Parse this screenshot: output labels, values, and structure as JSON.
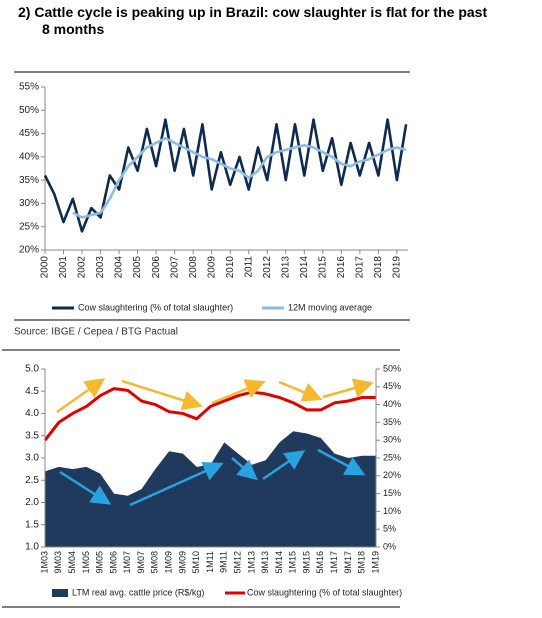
{
  "title": "2)  Cattle cycle is peaking up in Brazil: cow slaughter is flat for the past 8 months",
  "source": "Source: IBGE / Cepea / BTG Pactual",
  "chart_data": [
    {
      "type": "line",
      "x": [
        2000,
        2000.5,
        2001,
        2001.5,
        2002,
        2002.5,
        2003,
        2003.5,
        2004,
        2004.5,
        2005,
        2005.5,
        2006,
        2006.5,
        2007,
        2007.5,
        2008,
        2008.5,
        2009,
        2009.5,
        2010,
        2010.5,
        2011,
        2011.5,
        2012,
        2012.5,
        2013,
        2013.5,
        2014,
        2014.5,
        2015,
        2015.5,
        2016,
        2016.5,
        2017,
        2017.5,
        2018,
        2018.5,
        2019,
        2019.5
      ],
      "series": [
        {
          "name": "Cow slaughtering  (% of total slaughter)",
          "color": "#0e2b4e",
          "values": [
            36,
            32,
            26,
            31,
            24,
            29,
            27,
            36,
            33,
            42,
            37,
            46,
            38,
            48,
            37,
            46,
            36,
            47,
            33,
            41,
            34,
            40,
            33,
            42,
            35,
            47,
            35,
            47,
            36,
            48,
            37,
            44,
            34,
            43,
            36,
            43,
            36,
            48,
            35,
            47
          ]
        },
        {
          "name": "12M moving average",
          "color": "#8cbbe6",
          "values": [
            null,
            null,
            null,
            28,
            27,
            27.5,
            28,
            31,
            35,
            38,
            40,
            42,
            43,
            44,
            43,
            42,
            41,
            40,
            39.5,
            38.5,
            37.5,
            37,
            35.5,
            37,
            40,
            41,
            41.5,
            42,
            42.5,
            42,
            41,
            40,
            38.5,
            38,
            39,
            39.5,
            40.5,
            41.5,
            42,
            41.5
          ]
        }
      ],
      "xlim": [
        2000,
        2019.6
      ],
      "xticks": [
        2000,
        2001,
        2002,
        2003,
        2004,
        2005,
        2006,
        2007,
        2008,
        2009,
        2010,
        2011,
        2012,
        2013,
        2014,
        2015,
        2016,
        2017,
        2018,
        2019
      ],
      "ylim": [
        20,
        55
      ],
      "yticks": [
        {
          "value": 20,
          "label": "20%"
        },
        {
          "value": 25,
          "label": "25%"
        },
        {
          "value": 30,
          "label": "30%"
        },
        {
          "value": 35,
          "label": "35%"
        },
        {
          "value": 40,
          "label": "40%"
        },
        {
          "value": 45,
          "label": "45%"
        },
        {
          "value": 50,
          "label": "50%"
        },
        {
          "value": 55,
          "label": "55%"
        }
      ]
    },
    {
      "type": "combo",
      "categories": [
        "1M03",
        "9M03",
        "5M04",
        "1M05",
        "9M05",
        "5M06",
        "1M07",
        "9M07",
        "5M08",
        "1M09",
        "9M09",
        "5M10",
        "1M11",
        "9M11",
        "5M12",
        "1M13",
        "9M13",
        "5M14",
        "1M15",
        "9M15",
        "5M16",
        "1M17",
        "9M17",
        "5M18",
        "1M19"
      ],
      "series": [
        {
          "name": "LTM real avg. cattle price (R$/kg)",
          "type": "area",
          "color": "#1f3a5c",
          "values": [
            2.7,
            2.8,
            2.75,
            2.8,
            2.65,
            2.2,
            2.15,
            2.3,
            2.75,
            3.15,
            3.1,
            2.8,
            2.85,
            3.35,
            3.1,
            2.85,
            2.95,
            3.35,
            3.6,
            3.55,
            3.45,
            3.1,
            3.0,
            3.05,
            3.05
          ]
        },
        {
          "name": "Cow slaughtering (% of total slaughter)",
          "type": "line",
          "axis": "y2",
          "color": "#e00000",
          "values": [
            30,
            35,
            37.5,
            39.5,
            42.5,
            44.5,
            44,
            41,
            40,
            38,
            37.5,
            36,
            39.5,
            41,
            42.5,
            43.5,
            43,
            42,
            40.5,
            38.5,
            38.5,
            40.5,
            41,
            42,
            42
          ]
        }
      ],
      "ylim": [
        1,
        5
      ],
      "yticks": [
        {
          "value": 1,
          "label": "1.0"
        },
        {
          "value": 1.5,
          "label": "1.5"
        },
        {
          "value": 2,
          "label": "2.0"
        },
        {
          "value": 2.5,
          "label": "2.5"
        },
        {
          "value": 3,
          "label": "3.0"
        },
        {
          "value": 3.5,
          "label": "3.5"
        },
        {
          "value": 4,
          "label": "4.0"
        },
        {
          "value": 4.5,
          "label": "4.5"
        },
        {
          "value": 5,
          "label": "5.0"
        }
      ],
      "y2lim": [
        0,
        50
      ],
      "y2ticks": [
        {
          "value": 0,
          "label": "0%"
        },
        {
          "value": 5,
          "label": "5%"
        },
        {
          "value": 10,
          "label": "10%"
        },
        {
          "value": 15,
          "label": "15%"
        },
        {
          "value": 20,
          "label": "20%"
        },
        {
          "value": 25,
          "label": "25%"
        },
        {
          "value": 30,
          "label": "30%"
        },
        {
          "value": 35,
          "label": "35%"
        },
        {
          "value": 40,
          "label": "40%"
        },
        {
          "value": 45,
          "label": "45%"
        },
        {
          "value": 50,
          "label": "50%"
        }
      ]
    }
  ]
}
